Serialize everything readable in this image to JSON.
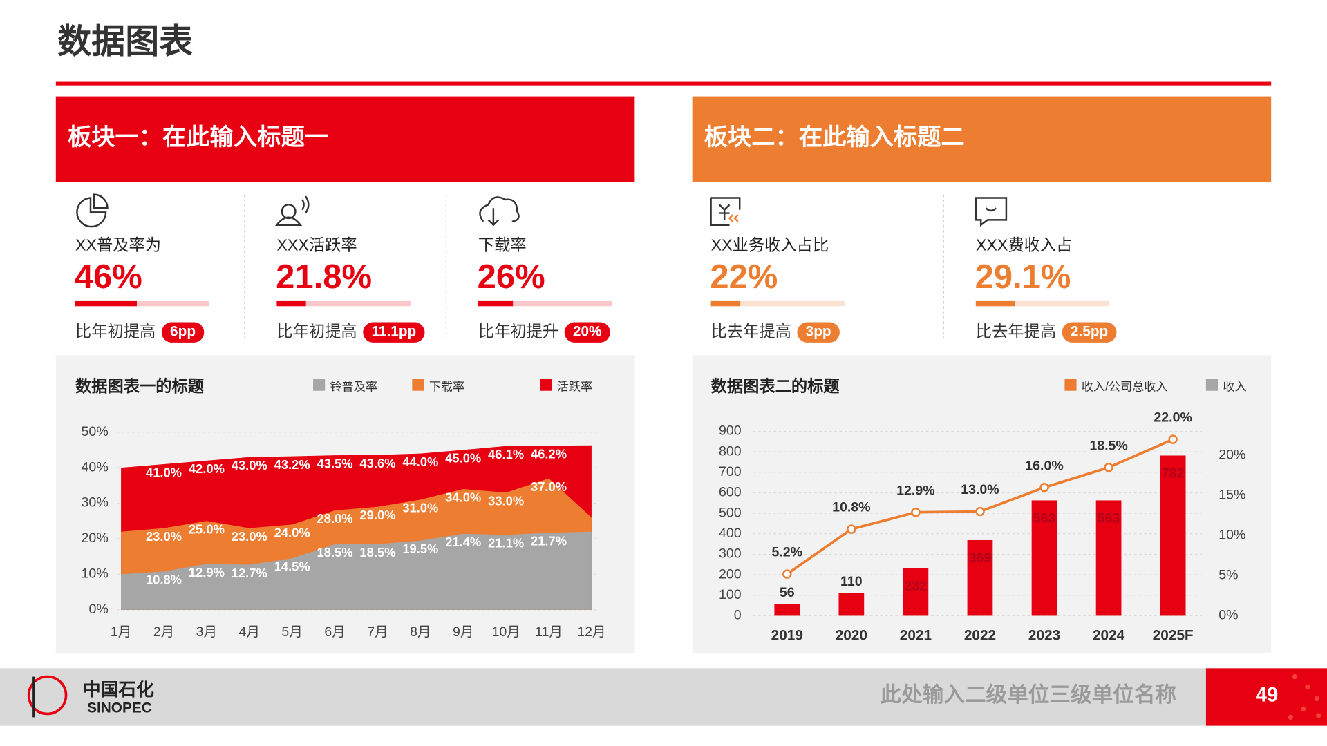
{
  "header": {
    "title": "数据图表"
  },
  "panels": [
    {
      "title": "板块一：在此输入标题一",
      "color": "#e60012",
      "kpis": [
        {
          "label": "XX普及率为",
          "value": 46,
          "value_label": "46%",
          "change_label": "比年初提高",
          "change": "6pp"
        },
        {
          "label": "XXX活跃率",
          "value": 21.8,
          "value_label": "21.8%",
          "change_label": "比年初提高",
          "change": "11.1pp"
        },
        {
          "label": "下载率",
          "value": 26,
          "value_label": "26%",
          "change_label": "比年初提升",
          "change": "20%"
        }
      ]
    },
    {
      "title": "板块二：在此输入标题二",
      "color": "#ed7d31",
      "kpis": [
        {
          "label": "XX业务收入占比",
          "value": 22,
          "value_label": "22%",
          "change_label": "比去年提高",
          "change": "3pp"
        },
        {
          "label": "XXX费收入占",
          "value": 29.1,
          "value_label": "29.1%",
          "change_label": "比去年提高",
          "change": "2.5pp"
        }
      ]
    }
  ],
  "chart_data": [
    {
      "type": "area",
      "title": "数据图表一的标题",
      "categories": [
        "1月",
        "2月",
        "3月",
        "4月",
        "5月",
        "6月",
        "7月",
        "8月",
        "9月",
        "10月",
        "11月",
        "12月"
      ],
      "series": [
        {
          "name": "铃普及率",
          "color": "#a6a6a6",
          "values": [
            10,
            10.8,
            12.9,
            12.7,
            14.5,
            18.5,
            18.5,
            19.5,
            21.4,
            21.1,
            21.7,
            22
          ],
          "value_labels": [
            null,
            "10.8%",
            "12.9%",
            "12.7%",
            "14.5%",
            "18.5%",
            "18.5%",
            "19.5%",
            "21.4%",
            "21.1%",
            "21.7%",
            null
          ]
        },
        {
          "name": "下载率",
          "color": "#ed7d31",
          "values": [
            22,
            23,
            25,
            23,
            24,
            28,
            29,
            31,
            34,
            33,
            37,
            26
          ],
          "value_labels": [
            null,
            "23.0%",
            "25.0%",
            "23.0%",
            "24.0%",
            "28.0%",
            "29.0%",
            "31.0%",
            "34.0%",
            "33.0%",
            "37.0%",
            null
          ]
        },
        {
          "name": "活跃率",
          "color": "#e60012",
          "values": [
            40,
            41,
            42,
            43,
            43.2,
            43.5,
            43.6,
            44,
            45,
            46.1,
            46.2,
            46.3
          ],
          "value_labels": [
            null,
            "41.0%",
            "42.0%",
            "43.0%",
            "43.2%",
            "43.5%",
            "43.6%",
            "44.0%",
            "45.0%",
            "46.1%",
            "46.2%",
            null
          ]
        }
      ],
      "ylim": [
        0,
        50
      ],
      "yticks": [
        {
          "value": 0,
          "label": "0%"
        },
        {
          "value": 10,
          "label": "10%"
        },
        {
          "value": 20,
          "label": "20%"
        },
        {
          "value": 30,
          "label": "30%"
        },
        {
          "value": 40,
          "label": "40%"
        },
        {
          "value": 50,
          "label": "50%"
        }
      ],
      "grid": true
    },
    {
      "type": "combo",
      "title": "数据图表二的标题",
      "categories": [
        "2019",
        "2020",
        "2021",
        "2022",
        "2023",
        "2024",
        "2025F"
      ],
      "series": [
        {
          "name": "收入/公司总收入",
          "type": "line",
          "axis": "y2",
          "color": "#ed7d31",
          "values": [
            5.2,
            10.8,
            12.9,
            13.0,
            16.0,
            18.5,
            22.0
          ],
          "value_labels": [
            "5.2%",
            "10.8%",
            "12.9%",
            "13.0%",
            "16.0%",
            "18.5%",
            "22.0%"
          ]
        },
        {
          "name": "收入",
          "type": "bar",
          "color": "#e60012",
          "legend_color": "#a6a6a6",
          "values": [
            56,
            110,
            232,
            369,
            563,
            563,
            782
          ]
        }
      ],
      "ylim": [
        0,
        900
      ],
      "yticks": [
        0,
        100,
        200,
        300,
        400,
        500,
        600,
        700,
        800,
        900
      ],
      "y2lim": [
        0,
        23
      ],
      "y2ticks": [
        {
          "value": 0,
          "label": "0%"
        },
        {
          "value": 5,
          "label": "5%"
        },
        {
          "value": 10,
          "label": "10%"
        },
        {
          "value": 15,
          "label": "15%"
        },
        {
          "value": 20,
          "label": "20%"
        }
      ],
      "grid": true
    }
  ],
  "footer": {
    "brand_cn": "中国石化",
    "brand_en": "SINOPEC",
    "unit": "此处输入二级单位三级单位名称",
    "page": 49
  }
}
